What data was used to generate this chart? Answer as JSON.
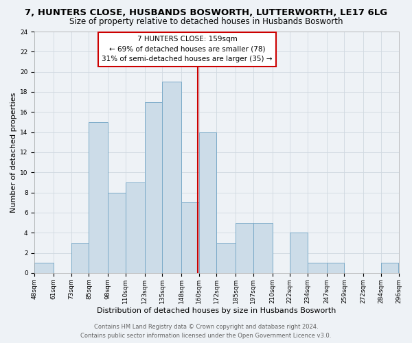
{
  "title": "7, HUNTERS CLOSE, HUSBANDS BOSWORTH, LUTTERWORTH, LE17 6LG",
  "subtitle": "Size of property relative to detached houses in Husbands Bosworth",
  "xlabel": "Distribution of detached houses by size in Husbands Bosworth",
  "ylabel": "Number of detached properties",
  "bin_edges": [
    48,
    61,
    73,
    85,
    98,
    110,
    123,
    135,
    148,
    160,
    172,
    185,
    197,
    210,
    222,
    234,
    247,
    259,
    272,
    284,
    296
  ],
  "bin_labels": [
    "48sqm",
    "61sqm",
    "73sqm",
    "85sqm",
    "98sqm",
    "110sqm",
    "123sqm",
    "135sqm",
    "148sqm",
    "160sqm",
    "172sqm",
    "185sqm",
    "197sqm",
    "210sqm",
    "222sqm",
    "234sqm",
    "247sqm",
    "259sqm",
    "272sqm",
    "284sqm",
    "296sqm"
  ],
  "counts": [
    1,
    0,
    3,
    15,
    8,
    9,
    17,
    19,
    7,
    14,
    3,
    5,
    5,
    0,
    4,
    1,
    1,
    0,
    0,
    1
  ],
  "bar_color": "#ccdce8",
  "bar_edge_color": "#7aaac8",
  "vline_x": 159,
  "vline_color": "#cc0000",
  "annotation_line1": "7 HUNTERS CLOSE: 159sqm",
  "annotation_line2": "← 69% of detached houses are smaller (78)",
  "annotation_line3": "31% of semi-detached houses are larger (35) →",
  "annotation_box_color": "#cc0000",
  "annotation_box_fill": "#ffffff",
  "ylim": [
    0,
    24
  ],
  "yticks": [
    0,
    2,
    4,
    6,
    8,
    10,
    12,
    14,
    16,
    18,
    20,
    22,
    24
  ],
  "grid_color": "#d0d8e0",
  "background_color": "#eef2f6",
  "footer_line1": "Contains HM Land Registry data © Crown copyright and database right 2024.",
  "footer_line2": "Contains public sector information licensed under the Open Government Licence v3.0.",
  "title_fontsize": 9.5,
  "subtitle_fontsize": 8.5,
  "ylabel_fontsize": 8,
  "xlabel_fontsize": 8,
  "tick_fontsize": 6.5,
  "annotation_fontsize": 7.5,
  "footer_fontsize": 6
}
